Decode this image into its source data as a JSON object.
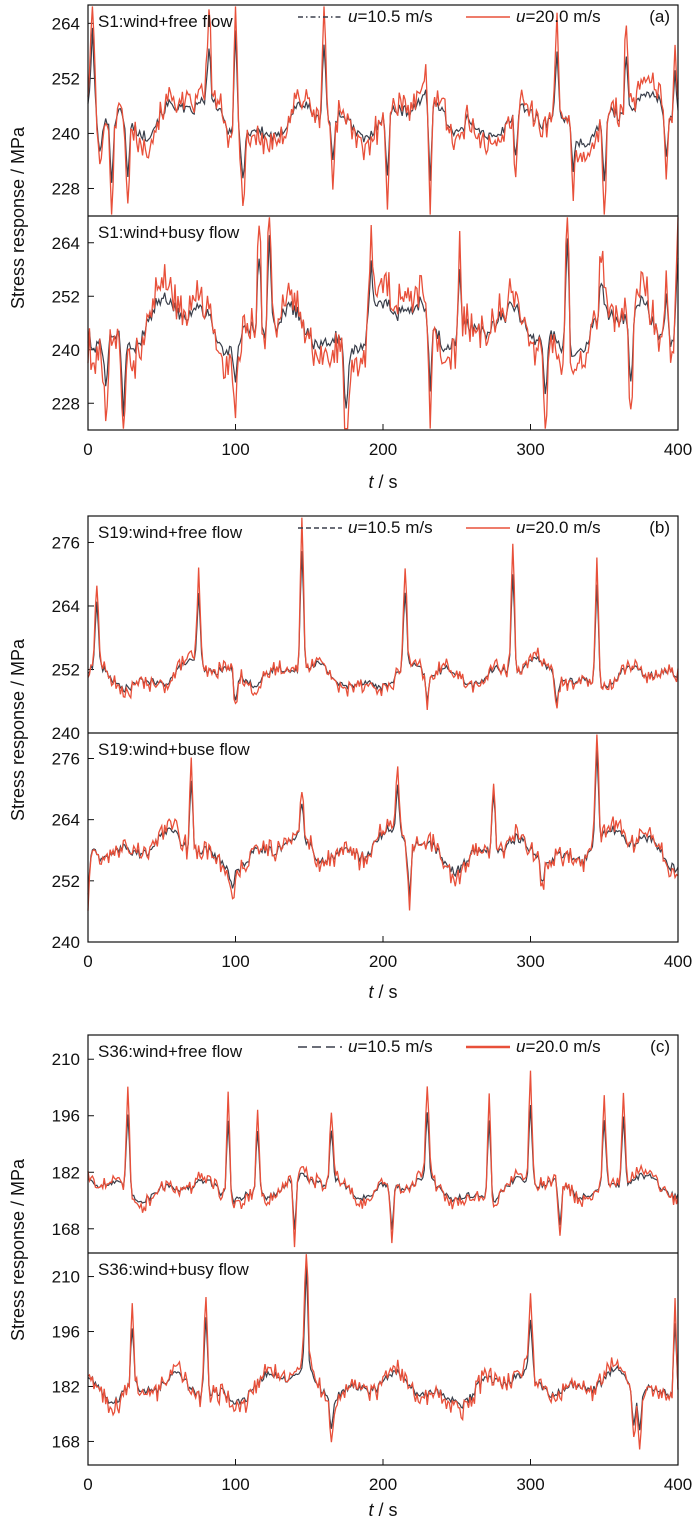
{
  "colors": {
    "series_low": "#3a3f4b",
    "series_high": "#e8503a",
    "axis": "#111111",
    "background": "#ffffff"
  },
  "chart_data": [
    {
      "type": "line",
      "panel_tag": "(a)",
      "ylabel": "Stress response / MPa",
      "xlabel": "t / s",
      "xlim": [
        0,
        400
      ],
      "xticks": [
        0,
        100,
        200,
        300,
        400
      ],
      "legend": {
        "placement": "top",
        "entries": [
          {
            "italic": "u",
            "text": "=10.5 m/s",
            "style": "dash-dot",
            "color": "#3a3f4b"
          },
          {
            "italic": "u",
            "text": "=20.0 m/s",
            "style": "solid",
            "color": "#e8503a"
          }
        ]
      },
      "subplots": [
        {
          "title": "S1:wind+free flow",
          "ylim": [
            222,
            268
          ],
          "yticks": [
            228,
            240,
            252,
            264
          ],
          "base": 243,
          "amp": 5.5,
          "hi_scale": 1.6,
          "spikes": [
            [
              3,
              262
            ],
            [
              8,
              235
            ],
            [
              16,
              230
            ],
            [
              27,
              230
            ],
            [
              82,
              258
            ],
            [
              100,
              262
            ],
            [
              105,
              230
            ],
            [
              123,
              240
            ],
            [
              160,
              260
            ],
            [
              166,
              235
            ],
            [
              203,
              230
            ],
            [
              232,
              230
            ],
            [
              258,
              244
            ],
            [
              290,
              235
            ],
            [
              318,
              258
            ],
            [
              329,
              232
            ],
            [
              350,
              230
            ],
            [
              365,
              258
            ],
            [
              392,
              235
            ],
            [
              398,
              254
            ]
          ],
          "series": [
            {
              "name": "u=10.5 m/s"
            },
            {
              "name": "u=20.0 m/s"
            }
          ]
        },
        {
          "title": "S1:wind+busy flow",
          "ylim": [
            222,
            270
          ],
          "yticks": [
            228,
            240,
            252,
            264
          ],
          "base": 245,
          "amp": 7,
          "hi_scale": 1.7,
          "spikes": [
            [
              5,
              241
            ],
            [
              12,
              232
            ],
            [
              24,
              226
            ],
            [
              48,
              252
            ],
            [
              100,
              232
            ],
            [
              116,
              262
            ],
            [
              123,
              266
            ],
            [
              175,
              226
            ],
            [
              182,
              240
            ],
            [
              192,
              260
            ],
            [
              213,
              250
            ],
            [
              232,
              232
            ],
            [
              252,
              258
            ],
            [
              282,
              246
            ],
            [
              310,
              230
            ],
            [
              325,
              266
            ],
            [
              348,
              256
            ],
            [
              368,
              232
            ],
            [
              392,
              252
            ],
            [
              400,
              262
            ]
          ],
          "series": [
            {
              "name": "u=10.5 m/s"
            },
            {
              "name": "u=20.0 m/s"
            }
          ]
        }
      ]
    },
    {
      "type": "line",
      "panel_tag": "(b)",
      "ylabel": "Stress response / MPa",
      "xlabel": "t / s",
      "xlim": [
        0,
        400
      ],
      "xticks": [
        0,
        100,
        200,
        300,
        400
      ],
      "legend": {
        "placement": "top",
        "entries": [
          {
            "italic": "u",
            "text": "=10.5 m/s",
            "style": "dashed",
            "color": "#3a3f4b"
          },
          {
            "italic": "u",
            "text": "=20.0 m/s",
            "style": "solid",
            "color": "#e8503a"
          }
        ]
      },
      "subplots": [
        {
          "title": "S19:wind+free flow",
          "ylim": [
            240,
            281
          ],
          "yticks": [
            240,
            252,
            264,
            276
          ],
          "base": 251,
          "amp": 2.8,
          "hi_scale": 1.3,
          "spikes": [
            [
              6,
              265
            ],
            [
              75,
              266
            ],
            [
              145,
              275
            ],
            [
              215,
              267
            ],
            [
              288,
              270
            ],
            [
              345,
              268
            ],
            [
              100,
              246
            ],
            [
              230,
              246
            ],
            [
              318,
              246
            ]
          ],
          "series": [
            {
              "name": "u=10.5 m/s"
            },
            {
              "name": "u=20.0 m/s"
            }
          ]
        },
        {
          "title": "S19:wind+buse flow",
          "ylim": [
            240,
            281
          ],
          "yticks": [
            240,
            252,
            264,
            276
          ],
          "base": 258,
          "amp": 4,
          "hi_scale": 1.3,
          "spikes": [
            [
              0,
              250
            ],
            [
              70,
              271
            ],
            [
              98,
              251
            ],
            [
              145,
              268
            ],
            [
              210,
              270
            ],
            [
              218,
              249
            ],
            [
              275,
              270
            ],
            [
              308,
              251
            ],
            [
              345,
              277
            ]
          ],
          "series": [
            {
              "name": "u=10.5 m/s"
            },
            {
              "name": "u=20.0 m/s"
            }
          ]
        }
      ]
    },
    {
      "type": "line",
      "panel_tag": "(c)",
      "ylabel": "Stress response / MPa",
      "xlabel": "t / s",
      "xlim": [
        0,
        400
      ],
      "xticks": [
        0,
        100,
        200,
        300,
        400
      ],
      "legend": {
        "placement": "top",
        "entries": [
          {
            "italic": "u",
            "text": "=10.5 m/s",
            "style": "long-dash",
            "color": "#3a3f4b"
          },
          {
            "italic": "u",
            "text": "=20.0 m/s",
            "style": "solid",
            "color": "#e8503a"
          }
        ]
      },
      "subplots": [
        {
          "title": "S36:wind+free flow",
          "ylim": [
            162,
            216
          ],
          "yticks": [
            168,
            182,
            196,
            210
          ],
          "base": 178,
          "amp": 3.5,
          "hi_scale": 1.4,
          "spikes": [
            [
              27,
              196
            ],
            [
              95,
              194
            ],
            [
              115,
              192
            ],
            [
              165,
              193
            ],
            [
              230,
              197
            ],
            [
              272,
              195
            ],
            [
              300,
              198
            ],
            [
              350,
              195
            ],
            [
              363,
              196
            ],
            [
              140,
              168
            ],
            [
              206,
              168
            ],
            [
              320,
              169
            ]
          ],
          "series": [
            {
              "name": "u=10.5 m/s"
            },
            {
              "name": "u=20.0 m/s"
            }
          ]
        },
        {
          "title": "S36:wind+busy flow",
          "ylim": [
            162,
            216
          ],
          "yticks": [
            168,
            182,
            196,
            210
          ],
          "base": 182,
          "amp": 4.5,
          "hi_scale": 1.4,
          "spikes": [
            [
              80,
              200
            ],
            [
              148,
              212
            ],
            [
              165,
              171
            ],
            [
              300,
              199
            ],
            [
              370,
              171
            ],
            [
              374,
              171
            ],
            [
              398,
              199
            ],
            [
              30,
              196
            ]
          ],
          "series": [
            {
              "name": "u=10.5 m/s"
            },
            {
              "name": "u=20.0 m/s"
            }
          ]
        }
      ]
    }
  ]
}
